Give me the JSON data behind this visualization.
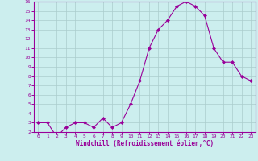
{
  "x": [
    0,
    1,
    2,
    3,
    4,
    5,
    6,
    7,
    8,
    9,
    10,
    11,
    12,
    13,
    14,
    15,
    16,
    17,
    18,
    19,
    20,
    21,
    22,
    23
  ],
  "y": [
    3.0,
    3.0,
    1.5,
    2.5,
    3.0,
    3.0,
    2.5,
    3.5,
    2.5,
    3.0,
    5.0,
    7.5,
    11.0,
    13.0,
    14.0,
    15.5,
    16.0,
    15.5,
    14.5,
    11.0,
    9.5,
    9.5,
    8.0,
    7.5
  ],
  "line_color": "#990099",
  "marker": "D",
  "marker_size": 2,
  "bg_color": "#cceeee",
  "grid_color": "#aacccc",
  "xlabel": "Windchill (Refroidissement éolien,°C)",
  "xlabel_color": "#990099",
  "tick_color": "#990099",
  "ylim": [
    2,
    16
  ],
  "xlim": [
    -0.5,
    23.5
  ],
  "yticks": [
    2,
    3,
    4,
    5,
    6,
    7,
    8,
    9,
    10,
    11,
    12,
    13,
    14,
    15,
    16
  ],
  "xticks": [
    0,
    1,
    2,
    3,
    4,
    5,
    6,
    7,
    8,
    9,
    10,
    11,
    12,
    13,
    14,
    15,
    16,
    17,
    18,
    19,
    20,
    21,
    22,
    23
  ],
  "spine_color": "#990099",
  "label_fontsize": 4.5,
  "xlabel_fontsize": 5.5
}
